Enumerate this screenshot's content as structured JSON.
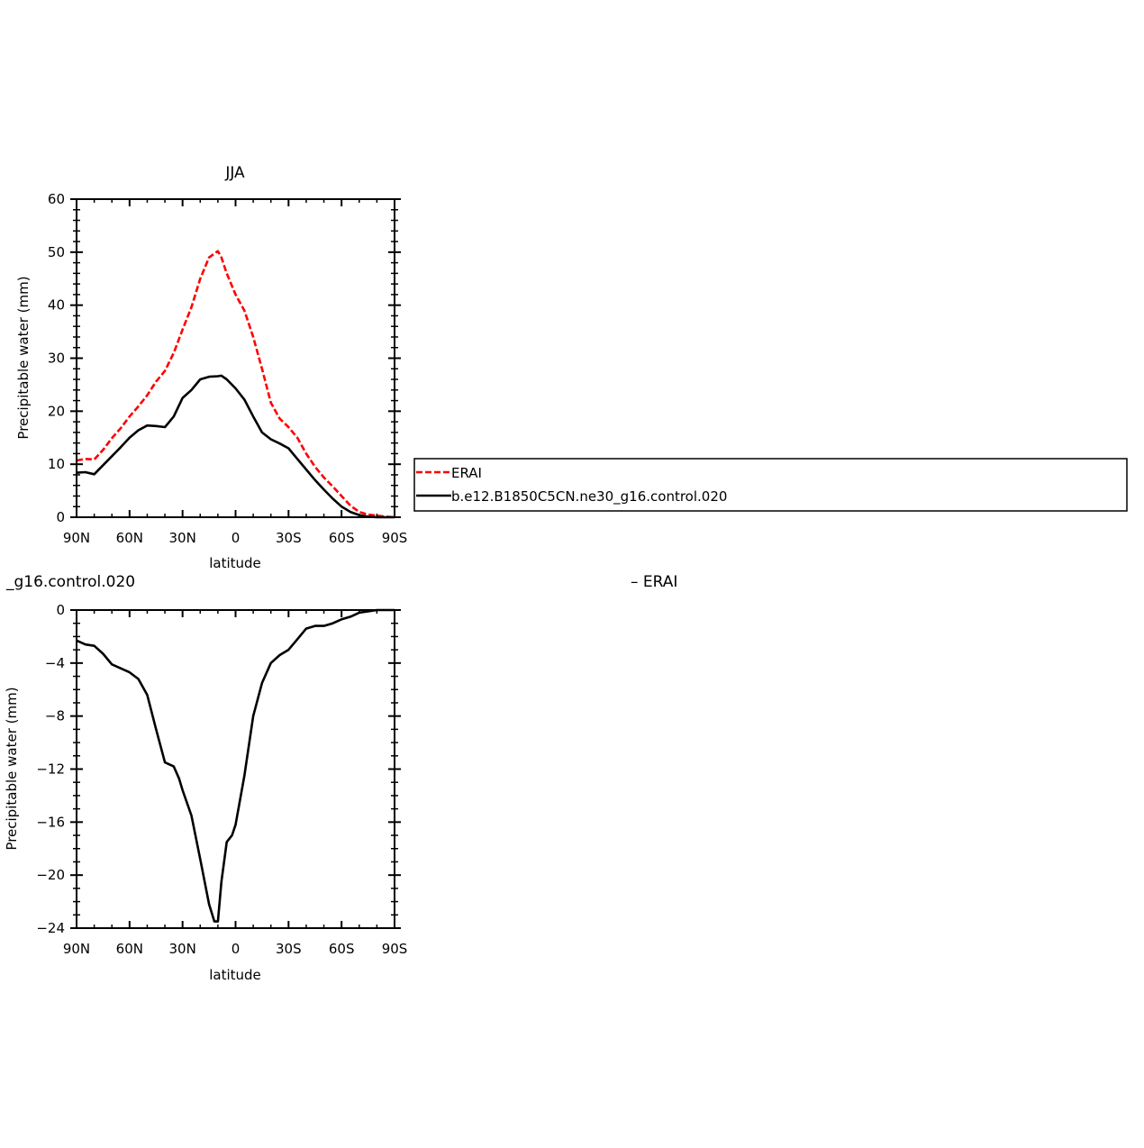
{
  "chart_data": [
    {
      "type": "line",
      "title": "JJA",
      "xlabel": "latitude",
      "ylabel": "Precipitable water (mm)",
      "xlim": [
        90,
        -90
      ],
      "ylim": [
        0,
        60
      ],
      "x_tick_values": [
        90,
        60,
        30,
        0,
        -30,
        -60,
        -90
      ],
      "x_tick_labels": [
        "90N",
        "60N",
        "30N",
        "0",
        "30S",
        "60S",
        "90S"
      ],
      "y_ticks": [
        0,
        10,
        20,
        30,
        40,
        50,
        60
      ],
      "series": [
        {
          "name": "ERAI",
          "color": "#ff0000",
          "dash": "dashed",
          "x": [
            90,
            85,
            80,
            75,
            70,
            65,
            60,
            55,
            50,
            45,
            40,
            35,
            30,
            25,
            20,
            15,
            10,
            8,
            5,
            0,
            -5,
            -10,
            -15,
            -20,
            -25,
            -30,
            -35,
            -40,
            -45,
            -50,
            -55,
            -60,
            -65,
            -70,
            -75,
            -80,
            -85,
            -90
          ],
          "y": [
            10.7,
            11,
            10.9,
            12.7,
            14.9,
            16.8,
            19,
            20.9,
            23,
            25.6,
            27.6,
            31,
            35.4,
            39.6,
            45,
            49,
            50.2,
            49,
            46,
            42,
            39,
            34,
            28,
            21.6,
            18.6,
            17,
            15,
            12,
            9.5,
            7.5,
            5.8,
            4,
            2.2,
            1,
            0.5,
            0.3,
            0.1,
            0
          ]
        },
        {
          "name": "b.e12.B1850C5CN.ne30_g16.control.020",
          "color": "#000000",
          "dash": "solid",
          "x": [
            90,
            85,
            80,
            75,
            70,
            65,
            60,
            55,
            50,
            45,
            40,
            35,
            30,
            25,
            20,
            15,
            10,
            8,
            5,
            0,
            -5,
            -10,
            -15,
            -20,
            -25,
            -30,
            -35,
            -40,
            -45,
            -50,
            -55,
            -60,
            -65,
            -70,
            -75,
            -80,
            -85,
            -90
          ],
          "y": [
            8.4,
            8.5,
            8.1,
            9.8,
            11.5,
            13.2,
            15,
            16.4,
            17.3,
            17.2,
            17,
            19,
            22.5,
            24,
            26,
            26.5,
            26.6,
            26.7,
            26,
            24.3,
            22.2,
            19,
            16,
            14.7,
            13.9,
            13,
            11,
            9,
            7,
            5.2,
            3.5,
            2,
            1,
            0.4,
            0.1,
            0,
            0,
            0
          ]
        }
      ]
    },
    {
      "type": "line",
      "title": "_g16.control.020",
      "title_right": "– ERAI",
      "xlabel": "latitude",
      "ylabel": "Precipitable water (mm)",
      "xlim": [
        90,
        -90
      ],
      "ylim": [
        -24,
        0
      ],
      "x_tick_values": [
        90,
        60,
        30,
        0,
        -30,
        -60,
        -90
      ],
      "x_tick_labels": [
        "90N",
        "60N",
        "30N",
        "0",
        "30S",
        "60S",
        "90S"
      ],
      "y_ticks": [
        0,
        -4,
        -8,
        -12,
        -16,
        -20,
        -24
      ],
      "series": [
        {
          "color": "#000000",
          "dash": "solid",
          "x": [
            90,
            85,
            80,
            75,
            70,
            65,
            60,
            55,
            50,
            45,
            40,
            35,
            32,
            30,
            25,
            20,
            15,
            12,
            10,
            8,
            5,
            2,
            0,
            -5,
            -10,
            -15,
            -20,
            -25,
            -30,
            -35,
            -40,
            -45,
            -50,
            -55,
            -60,
            -65,
            -70,
            -75,
            -80,
            -85,
            -90
          ],
          "y": [
            -2.3,
            -2.6,
            -2.7,
            -3.3,
            -4.1,
            -4.4,
            -4.7,
            -5.2,
            -6.4,
            -9,
            -11.5,
            -11.8,
            -12.7,
            -13.6,
            -15.5,
            -18.8,
            -22.2,
            -23.5,
            -23.5,
            -20.5,
            -17.5,
            -17,
            -16.2,
            -12.5,
            -8,
            -5.5,
            -4,
            -3.4,
            -3,
            -2.2,
            -1.4,
            -1.2,
            -1.2,
            -1,
            -0.7,
            -0.5,
            -0.2,
            -0.1,
            0,
            0,
            0
          ]
        }
      ]
    }
  ],
  "legend": {
    "items": [
      {
        "label": "ERAI",
        "color": "#ff0000",
        "dash": "dashed"
      },
      {
        "label": "b.e12.B1850C5CN.ne30_g16.control.020",
        "color": "#000000",
        "dash": "solid"
      }
    ]
  }
}
